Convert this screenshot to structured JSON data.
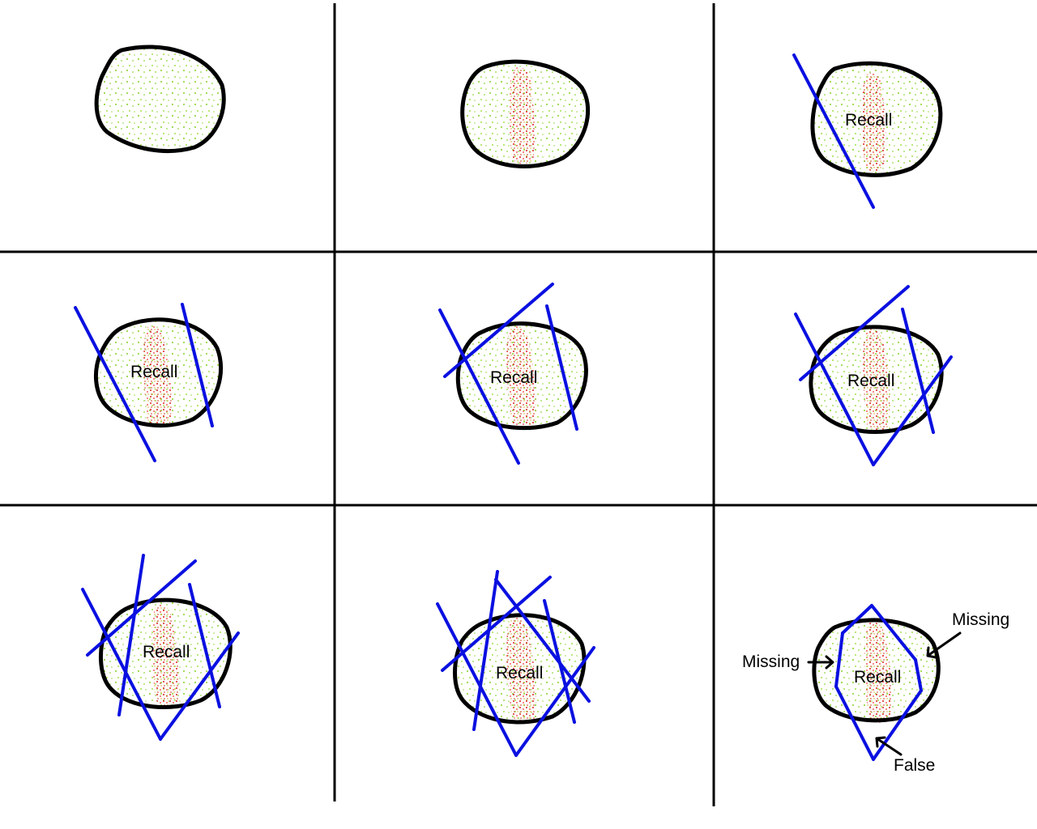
{
  "panels": [
    {
      "label": "",
      "cuts": 0
    },
    {
      "label": "",
      "cuts": 0
    },
    {
      "label": "Recall",
      "cuts": 1
    },
    {
      "label": "Recall",
      "cuts": 2
    },
    {
      "label": "Recall",
      "cuts": 3
    },
    {
      "label": "Recall",
      "cuts": 4
    },
    {
      "label": "Recall",
      "cuts": 5
    },
    {
      "label": "Recall",
      "cuts": 5
    },
    {
      "label": "Recall",
      "cuts": 4
    }
  ],
  "annotations": {
    "missing_left": "Missing",
    "missing_right": "Missing",
    "false_label": "False"
  },
  "colors": {
    "outline": "#000000",
    "cut_lines": "#0a10e0",
    "background_cells": "#99dd44",
    "target_cells": "#dd2222",
    "grid": "#000000"
  }
}
